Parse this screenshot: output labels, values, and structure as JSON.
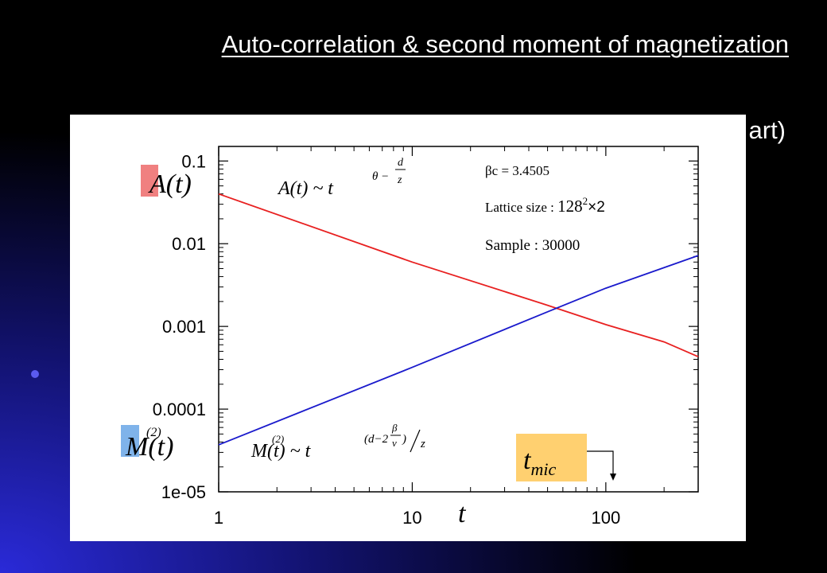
{
  "slide": {
    "title": "Auto-correlation & second moment of magnetization",
    "title_tail": "art)"
  },
  "chart_data": {
    "type": "line",
    "x_scale": "log",
    "y_scale": "log",
    "xlim": [
      1,
      300
    ],
    "ylim": [
      1e-05,
      0.15
    ],
    "xlabel": "t",
    "x_ticks": [
      {
        "value": 1,
        "label": "1"
      },
      {
        "value": 10,
        "label": "10"
      },
      {
        "value": 100,
        "label": "100"
      }
    ],
    "y_ticks": [
      {
        "value": 0.1,
        "label": "0.1"
      },
      {
        "value": 0.01,
        "label": "0.01"
      },
      {
        "value": 0.001,
        "label": "0.001"
      },
      {
        "value": 0.0001,
        "label": "0.0001"
      },
      {
        "value": 1e-05,
        "label": "1e-05"
      }
    ],
    "series": [
      {
        "name": "A(t)",
        "color": "#e82020",
        "x": [
          1,
          10,
          50,
          100,
          200,
          300
        ],
        "y": [
          0.04,
          0.006,
          0.0018,
          0.00105,
          0.00065,
          0.00043
        ]
      },
      {
        "name": "M(2)(t)",
        "color": "#1a1acc",
        "x": [
          1,
          10,
          50,
          100,
          300
        ],
        "y": [
          3.7e-05,
          0.00032,
          0.0015,
          0.0029,
          0.0072
        ]
      }
    ],
    "annotations": {
      "beta": "βc = 3.4505",
      "lattice_prefix": "Lattice size : ",
      "lattice_value": "128",
      "lattice_exp": "2",
      "lattice_suffix": "×2",
      "sample": "Sample : 30000",
      "t_mic": "t",
      "t_mic_sub": "mic",
      "series_a_label": "A(t)",
      "series_m_label": "M(t)",
      "series_m_sup": "(2)",
      "formula_a": "A(t)  ~  t",
      "formula_m": "M(t)  ~  t",
      "formula_m_sup": "(2)"
    },
    "colors": {
      "a_marker": "#f08080",
      "m_marker": "#7fb3ea",
      "t_mic_box": "#ffd070",
      "a_line": "#e82020",
      "m_line": "#1a1acc"
    }
  }
}
